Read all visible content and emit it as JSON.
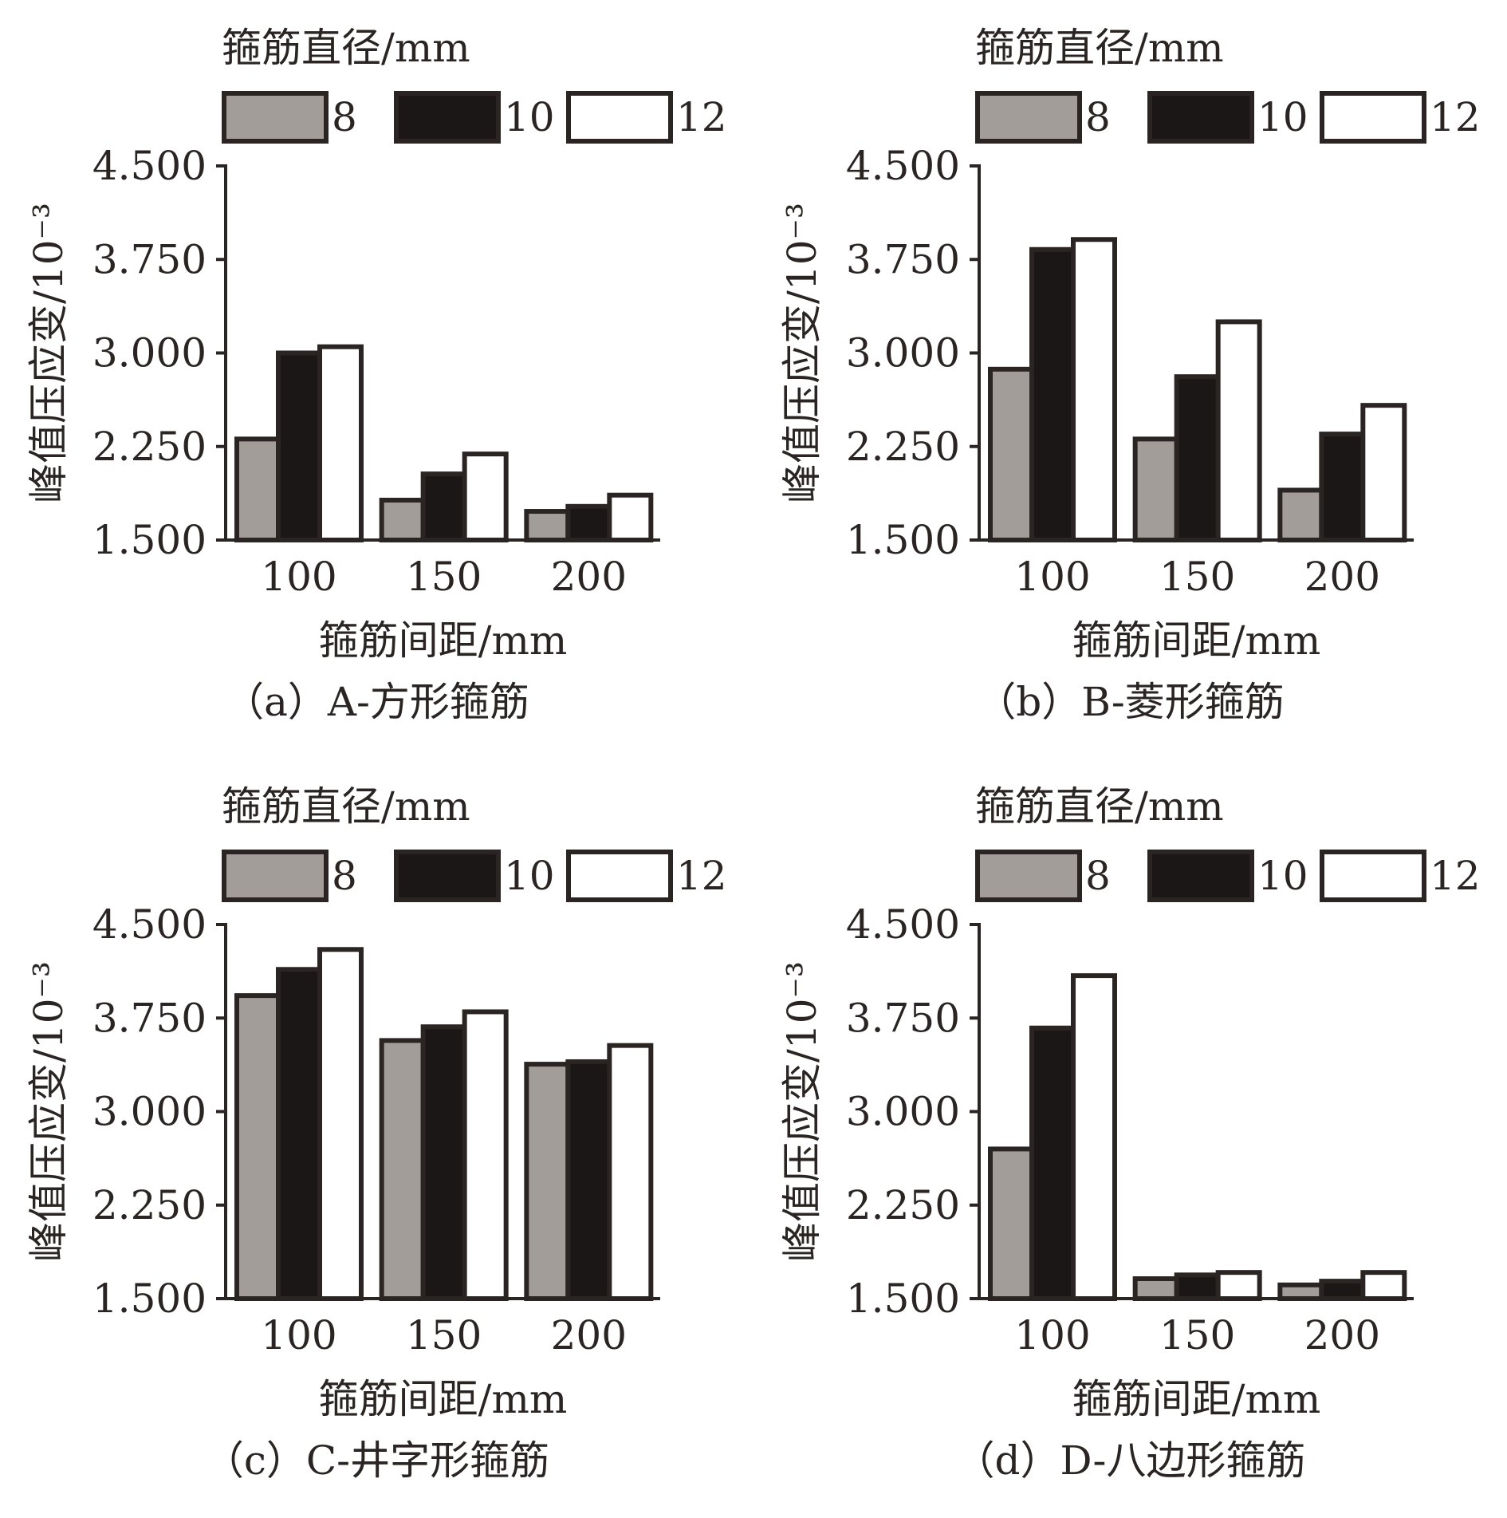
{
  "chart_data": [
    {
      "type": "bar",
      "title": "（a）A-方形箍筋",
      "legend_title": "箍筋直径/mm",
      "xlabel": "箍筋间距/mm",
      "ylabel": "峰值压应变/10⁻³",
      "categories": [
        "100",
        "150",
        "200"
      ],
      "ylim": [
        1.5,
        4.5
      ],
      "yticks": [
        "4.500",
        "3.750",
        "3.000",
        "2.250",
        "1.500"
      ],
      "legend_position": "top",
      "series": [
        {
          "name": "8",
          "color": "#a39d9a",
          "values": [
            2.31,
            1.82,
            1.73
          ]
        },
        {
          "name": "10",
          "color": "#1a1716",
          "values": [
            3.0,
            2.03,
            1.77
          ]
        },
        {
          "name": "12",
          "color": "#ffffff",
          "values": [
            3.05,
            2.19,
            1.86
          ]
        }
      ]
    },
    {
      "type": "bar",
      "title": "（b）B-菱形箍筋",
      "legend_title": "箍筋直径/mm",
      "xlabel": "箍筋间距/mm",
      "ylabel": "峰值压应变/10⁻³",
      "categories": [
        "100",
        "150",
        "200"
      ],
      "ylim": [
        1.5,
        4.5
      ],
      "yticks": [
        "4.500",
        "3.750",
        "3.000",
        "2.250",
        "1.500"
      ],
      "legend_position": "top",
      "series": [
        {
          "name": "8",
          "color": "#a39d9a",
          "values": [
            2.87,
            2.31,
            1.9
          ]
        },
        {
          "name": "10",
          "color": "#1a1716",
          "values": [
            3.83,
            2.81,
            2.35
          ]
        },
        {
          "name": "12",
          "color": "#ffffff",
          "values": [
            3.91,
            3.25,
            2.58
          ]
        }
      ]
    },
    {
      "type": "bar",
      "title": "（c）C-井字形箍筋",
      "legend_title": "箍筋直径/mm",
      "xlabel": "箍筋间距/mm",
      "ylabel": "峰值压应变/10⁻³",
      "categories": [
        "100",
        "150",
        "200"
      ],
      "ylim": [
        1.5,
        4.5
      ],
      "yticks": [
        "4.500",
        "3.750",
        "3.000",
        "2.250",
        "1.500"
      ],
      "legend_position": "top",
      "series": [
        {
          "name": "8",
          "color": "#a39d9a",
          "values": [
            3.93,
            3.57,
            3.38
          ]
        },
        {
          "name": "10",
          "color": "#1a1716",
          "values": [
            4.14,
            3.68,
            3.4
          ]
        },
        {
          "name": "12",
          "color": "#ffffff",
          "values": [
            4.3,
            3.8,
            3.53
          ]
        }
      ]
    },
    {
      "type": "bar",
      "title": "（d）D-八边形箍筋",
      "legend_title": "箍筋直径/mm",
      "xlabel": "箍筋间距/mm",
      "ylabel": "峰值压应变/10⁻³",
      "categories": [
        "100",
        "150",
        "200"
      ],
      "ylim": [
        1.5,
        4.5
      ],
      "yticks": [
        "4.500",
        "3.750",
        "3.000",
        "2.250",
        "1.500"
      ],
      "legend_position": "top",
      "series": [
        {
          "name": "8",
          "color": "#a39d9a",
          "values": [
            2.7,
            1.66,
            1.61
          ]
        },
        {
          "name": "10",
          "color": "#1a1716",
          "values": [
            3.67,
            1.69,
            1.64
          ]
        },
        {
          "name": "12",
          "color": "#ffffff",
          "values": [
            4.09,
            1.71,
            1.71
          ]
        }
      ]
    }
  ]
}
